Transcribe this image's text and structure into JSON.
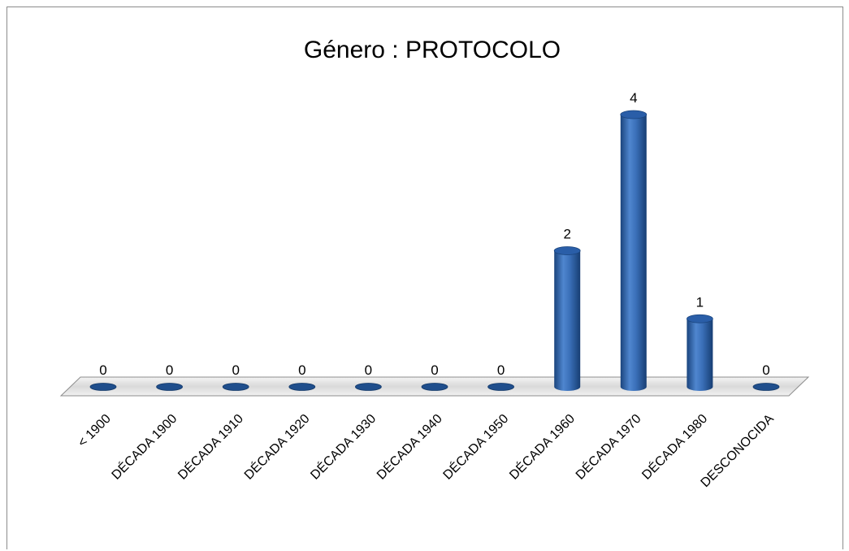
{
  "chart_data": {
    "type": "bar",
    "title": "Género : PROTOCOLO",
    "xlabel": "",
    "ylabel": "",
    "categories": [
      "< 1900",
      "DÉCADA 1900",
      "DÉCADA 1910",
      "DÉCADA 1920",
      "DÉCADA 1930",
      "DÉCADA 1940",
      "DÉCADA 1950",
      "DÉCADA 1960",
      "DÉCADA 1970",
      "DÉCADA 1980",
      "DESCONOCIDA"
    ],
    "values": [
      0,
      0,
      0,
      0,
      0,
      0,
      0,
      2,
      4,
      1,
      0
    ],
    "data_labels": [
      "0",
      "0",
      "0",
      "0",
      "0",
      "0",
      "0",
      "2",
      "4",
      "1",
      "0"
    ],
    "ylim": [
      0,
      4
    ],
    "grid": false,
    "legend": "none",
    "bar_shape": "3d-cylinder",
    "colors": {
      "bar_light": "#4f81bd",
      "bar_dark": "#1f4e8c",
      "bar_top": "#2a5ea8",
      "floor": "#e6e6e6",
      "floor_edge": "#8c8c8c"
    }
  }
}
